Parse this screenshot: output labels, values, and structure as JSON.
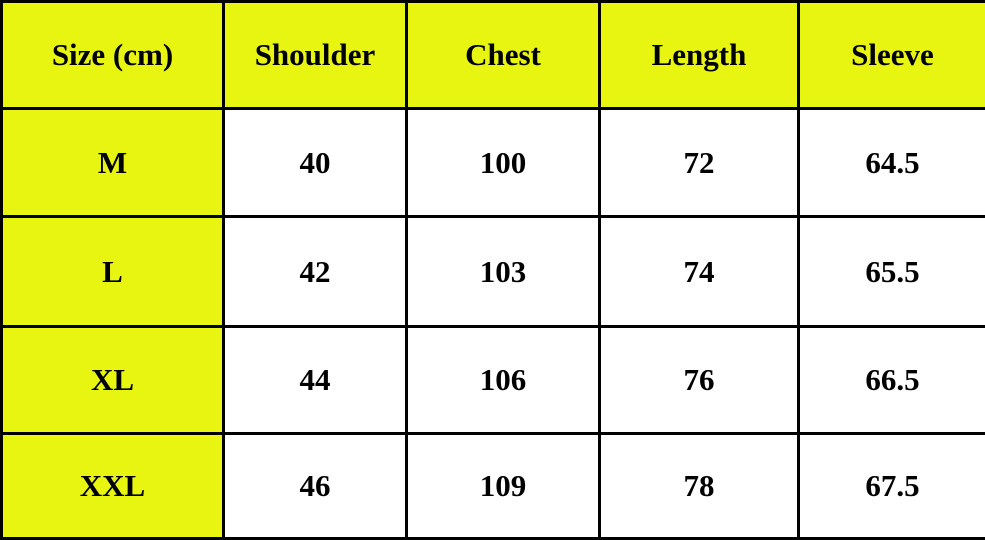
{
  "accent_color": "#e8f511",
  "headers": [
    "Size (cm)",
    "Shoulder",
    "Chest",
    "Length",
    "Sleeve"
  ],
  "rows": [
    [
      "M",
      "40",
      "100",
      "72",
      "64.5"
    ],
    [
      "L",
      "42",
      "103",
      "74",
      "65.5"
    ],
    [
      "XL",
      "44",
      "106",
      "76",
      "66.5"
    ],
    [
      "XXL",
      "46",
      "109",
      "78",
      "67.5"
    ]
  ]
}
